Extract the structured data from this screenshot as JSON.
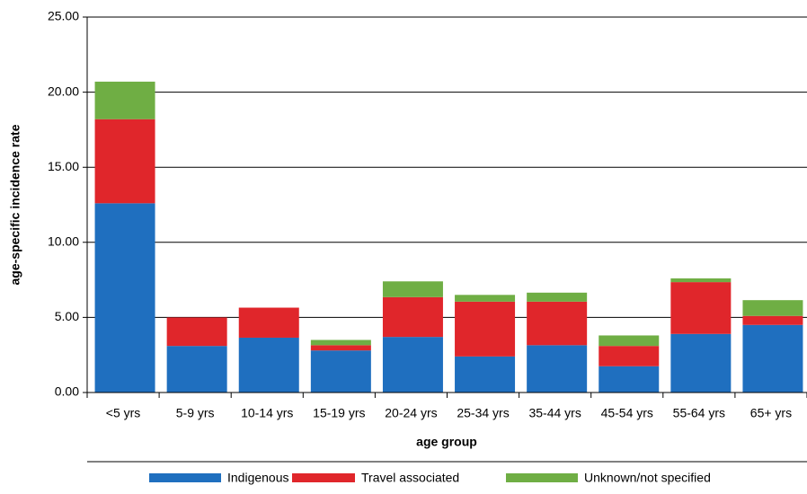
{
  "chart_data": {
    "type": "stacked_bar",
    "x_label": "age group",
    "y_label": "age-specific incidence rate",
    "categories": [
      "<5 yrs",
      "5-9 yrs",
      "10-14 yrs",
      "15-19 yrs",
      "20-24 yrs",
      "25-34 yrs",
      "35-44 yrs",
      "45-54 yrs",
      "55-64 yrs",
      "65+ yrs"
    ],
    "series": [
      {
        "name": "Indigenous",
        "color": "#1f6fbf",
        "values": [
          12.6,
          3.1,
          3.65,
          2.8,
          3.7,
          2.4,
          3.15,
          1.75,
          3.9,
          4.5
        ]
      },
      {
        "name": "Travel associated",
        "color": "#e0262b",
        "values": [
          5.6,
          1.9,
          2.0,
          0.35,
          2.65,
          3.65,
          2.9,
          1.35,
          3.45,
          0.6
        ]
      },
      {
        "name": "Unknown/not specified",
        "color": "#6fae44",
        "values": [
          2.5,
          0,
          0,
          0.35,
          1.05,
          0.45,
          0.6,
          0.7,
          0.25,
          1.05
        ]
      }
    ],
    "ylim": [
      0,
      25
    ],
    "yticks": [
      {
        "value": 0,
        "label": "0.00"
      },
      {
        "value": 5,
        "label": "5.00"
      },
      {
        "value": 10,
        "label": "10.00"
      },
      {
        "value": 15,
        "label": "15.00"
      },
      {
        "value": 20,
        "label": "20.00"
      },
      {
        "value": 25,
        "label": "25.00"
      }
    ],
    "grid": true,
    "legend": "bottom"
  }
}
